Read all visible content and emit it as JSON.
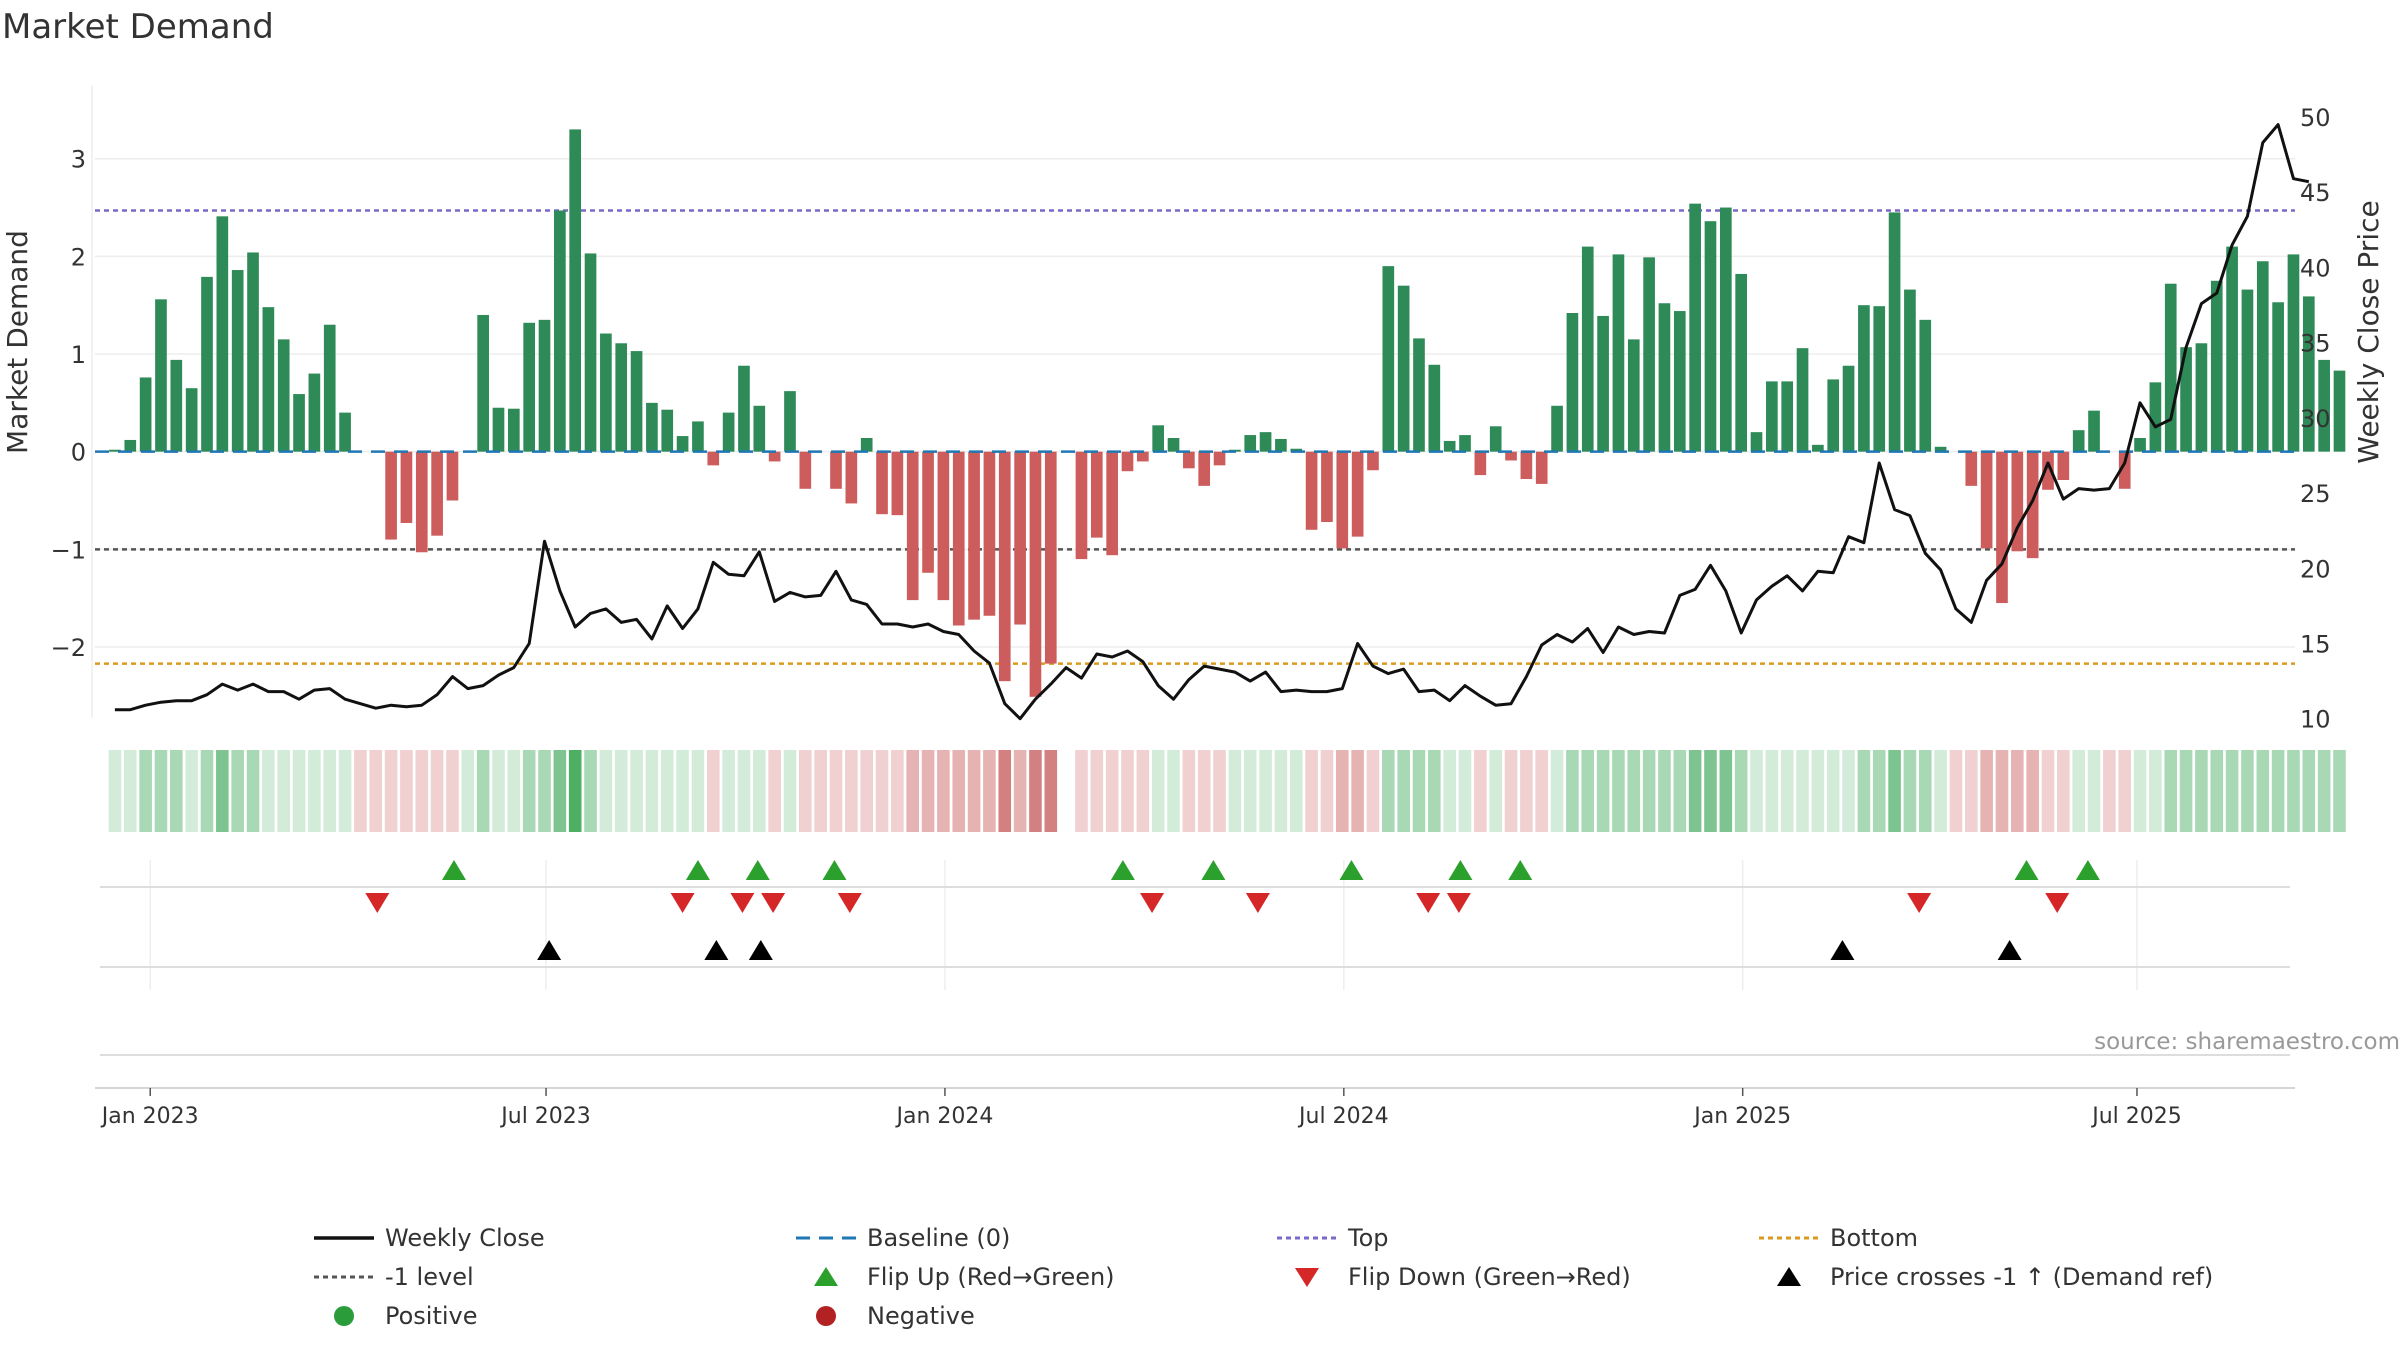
{
  "chart_data": {
    "type": "bar",
    "title": "Market Demand",
    "ylabel": "Market Demand",
    "y2label": "Weekly Close Price",
    "ylim": [
      -2.85,
      3.55
    ],
    "y2lim": [
      9.25,
      50.8
    ],
    "yticks": [
      3,
      2,
      1,
      0,
      -1,
      -2
    ],
    "yticklabels": [
      "3",
      "2",
      "1",
      "0",
      "−1",
      "−2"
    ],
    "y2ticks": [
      50,
      45,
      40,
      35,
      30,
      25,
      20,
      15,
      10
    ],
    "y2ticklabels": [
      "50",
      "45",
      "40",
      "35",
      "30",
      "25",
      "20",
      "15",
      "10"
    ],
    "x_start_index": -1.3,
    "x_end_index": 142.1,
    "xticks": [
      {
        "label": "Jan 2023",
        "index": 2.3
      },
      {
        "label": "Jul 2023",
        "index": 28.1
      },
      {
        "label": "Jan 2024",
        "index": 54.1
      },
      {
        "label": "Jul 2024",
        "index": 80.1
      },
      {
        "label": "Jan 2025",
        "index": 106.1
      },
      {
        "label": "Jul 2025",
        "index": 131.8
      }
    ],
    "reference_lines": {
      "top": 2.47,
      "minus_one": -1.0,
      "bottom": -2.17,
      "baseline": 0
    },
    "colors": {
      "positive": "#2e8a57",
      "negative": "#cd5c5c",
      "close": "#111111",
      "baseline": "#1f77b4",
      "top": "#7b68c8",
      "minus_one": "#555555",
      "bottom": "#d99a1e",
      "flip_up": "#2ca02c",
      "flip_down": "#d62728",
      "cross": "#000000",
      "positive_marker": "#2a9d3a",
      "negative_marker": "#b22222"
    },
    "demand": [
      0.02,
      0.12,
      0.76,
      1.56,
      0.94,
      0.65,
      1.79,
      2.41,
      1.86,
      2.04,
      1.48,
      1.15,
      0.59,
      0.8,
      1.3,
      0.4,
      0,
      0,
      -0.9,
      -0.73,
      -1.03,
      -0.86,
      -0.5,
      0,
      1.4,
      0.45,
      0.44,
      1.32,
      1.35,
      2.47,
      3.3,
      2.03,
      1.21,
      1.11,
      1.03,
      0.5,
      0.43,
      0.16,
      0.31,
      -0.14,
      0.4,
      0.88,
      0.47,
      -0.1,
      0.62,
      -0.38,
      0,
      -0.38,
      -0.53,
      0.14,
      -0.64,
      -0.65,
      -1.52,
      -1.24,
      -1.52,
      -1.78,
      -1.72,
      -1.68,
      -2.35,
      -1.77,
      -2.51,
      -2.17,
      0,
      -1.1,
      -0.88,
      -1.06,
      -0.2,
      -0.1,
      0.27,
      0.14,
      -0.17,
      -0.35,
      -0.14,
      0.02,
      0.17,
      0.2,
      0.13,
      0.03,
      -0.8,
      -0.72,
      -0.99,
      -0.87,
      -0.19,
      1.9,
      1.7,
      1.16,
      0.89,
      0.11,
      0.17,
      -0.24,
      0.26,
      -0.09,
      -0.28,
      -0.33,
      0.47,
      1.42,
      2.1,
      1.39,
      2.02,
      1.15,
      1.99,
      1.52,
      1.44,
      2.54,
      2.36,
      2.5,
      1.82,
      0.2,
      0.72,
      0.72,
      1.06,
      0.07,
      0.74,
      0.88,
      1.5,
      1.49,
      2.45,
      1.66,
      1.35,
      0.05,
      0,
      -0.35,
      -0.99,
      -1.55,
      -1.02,
      -1.09,
      -0.39,
      -0.29,
      0.22,
      0.42,
      0,
      -0.38,
      0.14,
      0.71,
      1.72,
      1.07,
      1.11,
      1.75,
      2.1,
      1.66,
      1.95,
      1.53,
      2.02,
      1.59,
      0.94,
      0.83
    ],
    "close": [
      10.6,
      10.6,
      10.9,
      11.1,
      11.2,
      11.2,
      11.6,
      12.3,
      11.9,
      12.3,
      11.8,
      11.8,
      11.3,
      11.9,
      12.0,
      11.3,
      11.0,
      10.7,
      10.9,
      10.8,
      10.9,
      11.6,
      12.8,
      12.0,
      12.2,
      12.9,
      13.4,
      15.0,
      21.8,
      18.5,
      16.1,
      17.0,
      17.3,
      16.4,
      16.6,
      15.3,
      17.5,
      16.0,
      17.3,
      20.4,
      19.6,
      19.5,
      21.1,
      17.8,
      18.4,
      18.1,
      18.2,
      19.8,
      17.9,
      17.6,
      16.3,
      16.3,
      16.1,
      16.3,
      15.8,
      15.6,
      14.5,
      13.7,
      11.0,
      10.0,
      11.3,
      12.3,
      13.4,
      12.7,
      14.3,
      14.1,
      14.5,
      13.8,
      12.2,
      11.3,
      12.6,
      13.5,
      13.3,
      13.1,
      12.5,
      13.1,
      11.8,
      11.9,
      11.8,
      11.8,
      12.0,
      15.0,
      13.5,
      13.0,
      13.3,
      11.8,
      11.9,
      11.2,
      12.2,
      11.5,
      10.9,
      11.0,
      12.8,
      14.9,
      15.6,
      15.1,
      16.0,
      14.4,
      16.1,
      15.6,
      15.8,
      15.7,
      18.2,
      18.6,
      20.2,
      18.5,
      15.7,
      17.9,
      18.8,
      19.5,
      18.5,
      19.8,
      19.7,
      22.1,
      21.7,
      27.0,
      23.9,
      23.5,
      21.0,
      19.9,
      17.3,
      16.4,
      19.2,
      20.3,
      22.7,
      24.5,
      27.0,
      24.6,
      25.3,
      25.2,
      25.3,
      27.0,
      31.0,
      29.4,
      29.9,
      34.7,
      37.6,
      38.3,
      41.5,
      43.4,
      48.3,
      49.5,
      45.9,
      45.7
    ],
    "heat": [
      1,
      1,
      2,
      2,
      2,
      1,
      2,
      3,
      2,
      2,
      1,
      1,
      1,
      1,
      1,
      1,
      -1,
      -1,
      -1,
      -1,
      -1,
      -1,
      -1,
      1,
      2,
      1,
      1,
      2,
      2,
      3,
      4,
      2,
      1,
      1,
      1,
      1,
      1,
      1,
      1,
      -1,
      1,
      1,
      1,
      -1,
      1,
      -1,
      -1,
      -1,
      -1,
      -1,
      -1,
      -1,
      -2,
      -2,
      -2,
      -2,
      -2,
      -2,
      -3,
      -2,
      -3,
      -3,
      0,
      -1,
      -1,
      -1,
      -1,
      -1,
      1,
      1,
      -1,
      -1,
      -1,
      1,
      1,
      1,
      1,
      1,
      -1,
      -1,
      -2,
      -2,
      -1,
      2,
      2,
      2,
      2,
      1,
      1,
      -1,
      1,
      -1,
      -1,
      -1,
      1,
      2,
      2,
      2,
      2,
      2,
      2,
      2,
      2,
      3,
      3,
      3,
      2,
      1,
      1,
      1,
      1,
      1,
      1,
      1,
      2,
      2,
      3,
      2,
      2,
      1,
      -1,
      -1,
      -2,
      -2,
      -2,
      -2,
      -1,
      -1,
      1,
      1,
      -1,
      -1,
      1,
      1,
      2,
      2,
      2,
      2,
      2,
      2,
      2,
      2,
      2,
      2,
      2,
      2
    ],
    "flip_up_index": [
      22.1,
      38.0,
      41.9,
      46.9,
      65.7,
      71.6,
      80.6,
      87.7,
      91.6,
      124.6,
      128.6
    ],
    "flip_down_index": [
      17.1,
      37.0,
      40.9,
      42.9,
      47.9,
      67.6,
      74.5,
      85.6,
      87.6,
      117.6,
      126.6
    ],
    "cross_index": [
      28.3,
      39.2,
      42.1,
      112.6,
      123.5
    ],
    "source": "source: sharemaestro.com",
    "legend": [
      {
        "key": "close",
        "label": "Weekly Close",
        "style": "line"
      },
      {
        "key": "baseline",
        "label": "Baseline (0)",
        "style": "dash"
      },
      {
        "key": "top",
        "label": "Top",
        "style": "dot"
      },
      {
        "key": "bottom",
        "label": "Bottom",
        "style": "dot"
      },
      {
        "key": "minus_one",
        "label": "-1 level",
        "style": "dot"
      },
      {
        "key": "flip_up",
        "label": "Flip Up (Red→Green)",
        "style": "tri-up"
      },
      {
        "key": "flip_down",
        "label": "Flip Down (Green→Red)",
        "style": "tri-down"
      },
      {
        "key": "cross",
        "label": "Price crosses -1 ↑ (Demand ref)",
        "style": "tri-up"
      },
      {
        "key": "positive_marker",
        "label": "Positive",
        "style": "circle"
      },
      {
        "key": "negative_marker",
        "label": "Negative",
        "style": "circle"
      }
    ]
  }
}
